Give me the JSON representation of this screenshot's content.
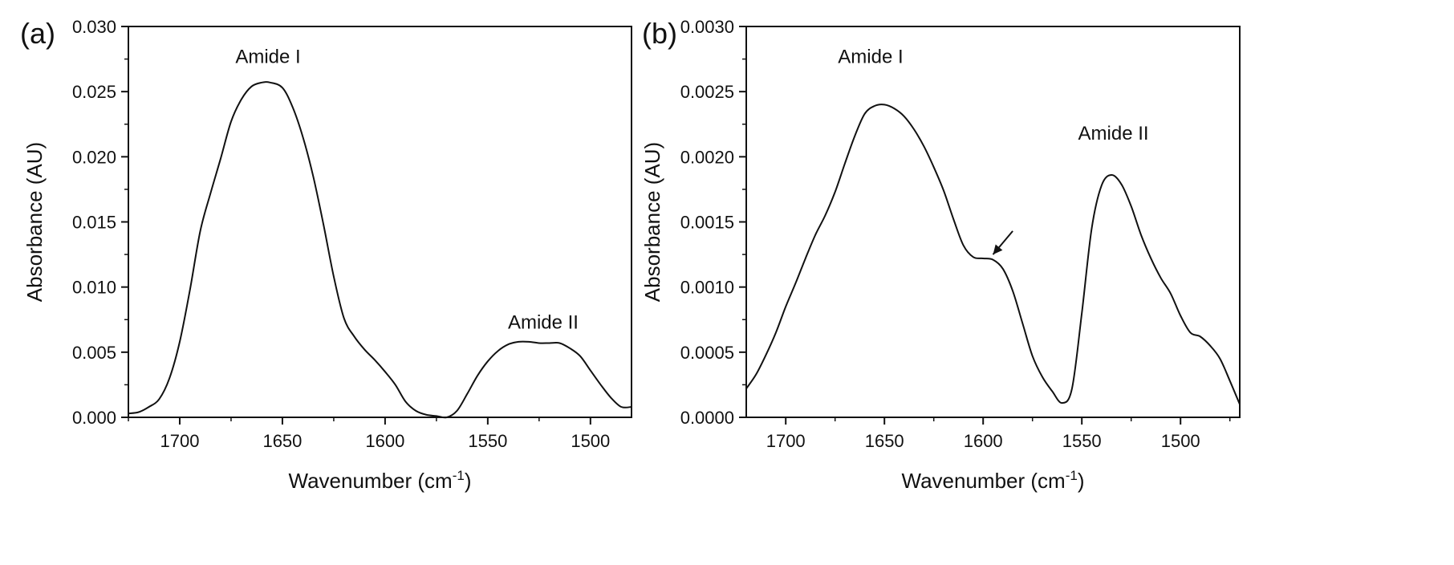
{
  "chart_data": [
    {
      "type": "line",
      "panel_label": "(a)",
      "xlabel": "Wavenumber (cm",
      "xlabel_sup": "-1",
      "xlabel_close": ")",
      "ylabel": "Absorbance (AU)",
      "xlim": [
        1725,
        1480
      ],
      "ylim": [
        0,
        0.03
      ],
      "x_ticks": [
        1700,
        1650,
        1600,
        1550,
        1500
      ],
      "x_tick_labels": [
        "1700",
        "1650",
        "1600",
        "1550",
        "1500"
      ],
      "y_ticks": [
        0,
        0.005,
        0.01,
        0.015,
        0.02,
        0.025,
        0.03
      ],
      "y_tick_labels": [
        "0.000",
        "0.005",
        "0.010",
        "0.015",
        "0.020",
        "0.025",
        "0.030"
      ],
      "grid": false,
      "annotations": [
        {
          "text": "Amide I",
          "x": 1657,
          "y": 0.0272
        },
        {
          "text": "Amide II",
          "x": 1523,
          "y": 0.0068
        }
      ],
      "series": [
        {
          "x": [
            1725,
            1720,
            1715,
            1710,
            1705,
            1700,
            1695,
            1690,
            1685,
            1680,
            1675,
            1670,
            1665,
            1660,
            1656,
            1650,
            1645,
            1640,
            1635,
            1630,
            1625,
            1620,
            1615,
            1610,
            1605,
            1600,
            1595,
            1590,
            1585,
            1580,
            1575,
            1570,
            1565,
            1560,
            1555,
            1550,
            1545,
            1540,
            1535,
            1530,
            1525,
            1520,
            1515,
            1510,
            1505,
            1500,
            1495,
            1490,
            1485,
            1480
          ],
          "y": [
            0.0003,
            0.0004,
            0.0008,
            0.0014,
            0.003,
            0.0058,
            0.0098,
            0.0143,
            0.0172,
            0.0199,
            0.0227,
            0.0244,
            0.0254,
            0.0257,
            0.0257,
            0.0253,
            0.0238,
            0.0215,
            0.0185,
            0.0148,
            0.0108,
            0.0076,
            0.0062,
            0.0052,
            0.0044,
            0.0035,
            0.0025,
            0.0012,
            0.0005,
            0.0002,
            0.0001,
            0.0,
            0.0005,
            0.0018,
            0.0032,
            0.0043,
            0.0051,
            0.0056,
            0.0058,
            0.0058,
            0.0057,
            0.0057,
            0.0057,
            0.0053,
            0.0047,
            0.0036,
            0.0025,
            0.0015,
            0.0008,
            0.0008
          ]
        }
      ]
    },
    {
      "type": "line",
      "panel_label": "(b)",
      "xlabel": "Wavenumber (cm",
      "xlabel_sup": "-1",
      "xlabel_close": ")",
      "ylabel": "Absorbance (AU)",
      "xlim": [
        1720,
        1470
      ],
      "ylim": [
        0,
        0.003
      ],
      "x_ticks": [
        1700,
        1650,
        1600,
        1550,
        1500
      ],
      "x_tick_labels": [
        "1700",
        "1650",
        "1600",
        "1550",
        "1500"
      ],
      "y_ticks": [
        0,
        0.0005,
        0.001,
        0.0015,
        0.002,
        0.0025,
        0.003
      ],
      "y_tick_labels": [
        "0.0000",
        "0.0005",
        "0.0010",
        "0.0015",
        "0.0020",
        "0.0025",
        "0.0030"
      ],
      "grid": false,
      "annotations": [
        {
          "text": "Amide I",
          "x": 1657,
          "y": 0.00272
        },
        {
          "text": "Amide II",
          "x": 1534,
          "y": 0.00213
        }
      ],
      "arrow": {
        "from": [
          1585,
          0.00143
        ],
        "to": [
          1595,
          0.00125
        ]
      },
      "series": [
        {
          "x": [
            1720,
            1715,
            1710,
            1705,
            1700,
            1695,
            1690,
            1685,
            1680,
            1675,
            1670,
            1665,
            1660,
            1655,
            1650,
            1645,
            1640,
            1635,
            1630,
            1625,
            1620,
            1615,
            1610,
            1605,
            1600,
            1595,
            1590,
            1585,
            1580,
            1575,
            1570,
            1565,
            1560,
            1555,
            1550,
            1545,
            1540,
            1535,
            1530,
            1525,
            1520,
            1515,
            1510,
            1505,
            1500,
            1495,
            1490,
            1485,
            1480,
            1475,
            1470
          ],
          "y": [
            0.00022,
            0.00033,
            0.00048,
            0.00065,
            0.00085,
            0.00103,
            0.00122,
            0.0014,
            0.00155,
            0.00173,
            0.00195,
            0.00216,
            0.00233,
            0.00239,
            0.0024,
            0.00237,
            0.00231,
            0.00221,
            0.00208,
            0.00192,
            0.00174,
            0.00152,
            0.00132,
            0.00123,
            0.00122,
            0.00121,
            0.00114,
            0.00097,
            0.00072,
            0.00047,
            0.00031,
            0.0002,
            0.00011,
            0.00022,
            0.0008,
            0.00145,
            0.00178,
            0.00186,
            0.00179,
            0.00162,
            0.0014,
            0.00122,
            0.00107,
            0.00095,
            0.00078,
            0.00065,
            0.00062,
            0.00055,
            0.00045,
            0.00028,
            0.0001
          ]
        }
      ]
    }
  ]
}
